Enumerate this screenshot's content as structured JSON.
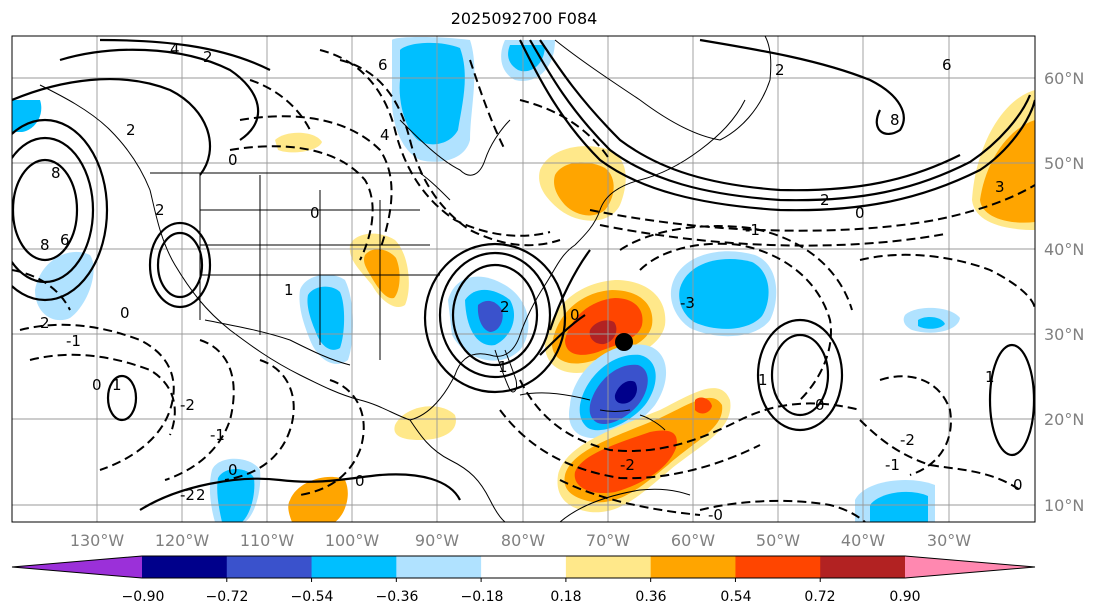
{
  "title": "2025092700 F084",
  "map": {
    "lon_labels": [
      "130°W",
      "120°W",
      "110°W",
      "100°W",
      "90°W",
      "80°W",
      "70°W",
      "60°W",
      "50°W",
      "40°W",
      "30°W"
    ],
    "lat_labels": [
      "60°N",
      "50°N",
      "40°N",
      "30°N",
      "20°N",
      "10°N"
    ],
    "lon_range": [
      -138,
      -18
    ],
    "lat_range": [
      7,
      65
    ],
    "grid": true,
    "storm_marker": {
      "lon": -68,
      "lat": 29
    }
  },
  "colorbar": {
    "ticks": [
      "−0.90",
      "−0.72",
      "−0.54",
      "−0.36",
      "−0.18",
      "0.18",
      "0.36",
      "0.54",
      "0.72",
      "0.90"
    ],
    "colors": [
      "#9b30d9",
      "#00008b",
      "#3a52cc",
      "#00bfff",
      "#b0e2ff",
      "#ffffff",
      "#ffe88a",
      "#ffa500",
      "#ff4500",
      "#b22222",
      "#ff88b0"
    ],
    "orientation": "horizontal",
    "extend": "both"
  },
  "contour_labels": {
    "items": [
      "4",
      "2",
      "6",
      "8",
      "6",
      "4",
      "2",
      "2",
      "0",
      "0",
      "2",
      "-1",
      "0",
      "-2",
      "-1",
      "0",
      "1",
      "2",
      "-2",
      "0",
      "1",
      "1",
      "2",
      "0",
      "-2",
      "-1",
      "8",
      "2",
      "0",
      "0",
      "-0",
      "6",
      "8",
      "3",
      "2",
      "1",
      "0",
      "-3",
      "1",
      "0",
      "-1",
      "-2"
    ]
  }
}
